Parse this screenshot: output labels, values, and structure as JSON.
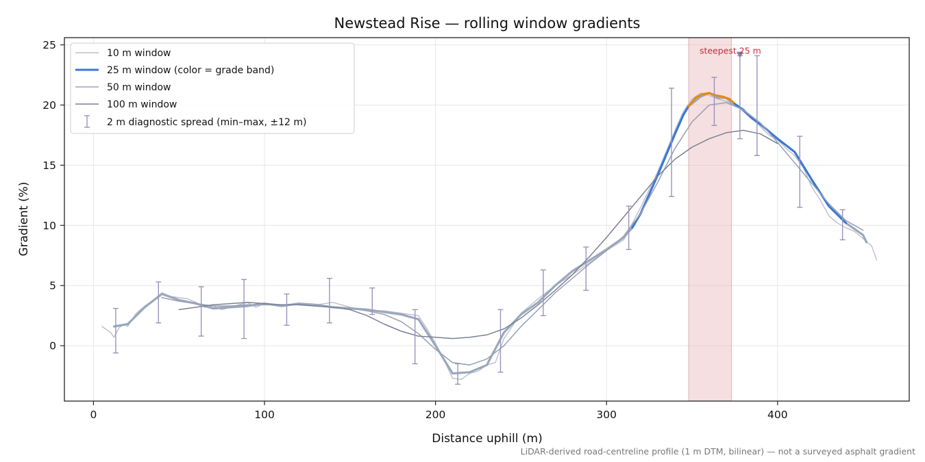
{
  "chart_data": {
    "type": "line",
    "title": "Newstead Rise — rolling window gradients",
    "xlabel": "Distance uphill (m)",
    "ylabel": "Gradient (%)",
    "xlim": [
      -17,
      477
    ],
    "ylim": [
      -4.6,
      25.6
    ],
    "xticks": [
      0,
      100,
      200,
      300,
      400
    ],
    "yticks": [
      0,
      5,
      10,
      15,
      20,
      25
    ],
    "grid": true,
    "legend_position": "top-left",
    "footnote": "LiDAR-derived road-centreline profile (1 m DTM, bilinear) — not a surveyed asphalt gradient",
    "annotation": {
      "label": "steepest 25 m",
      "x": 378,
      "y": 24.2
    },
    "highlight_band": {
      "x_start": 348,
      "x_end": 373
    },
    "colors": {
      "w10": "#b9bfcc",
      "w25_base": "#9aa8bd",
      "w25_blue": "#3a78d6",
      "w25_orange": "#e88a00",
      "w50": "#9ba3b4",
      "w100": "#7b8193",
      "errorbar": "#9a92bd",
      "band": "#e9b9bd",
      "marker": "#8a7cb0",
      "annotation": "#c0303a"
    },
    "legend": [
      "10 m window",
      "25 m window (color = grade band)",
      "50 m window",
      "100 m window",
      "2 m diagnostic spread (min–max, ±12 m)"
    ],
    "series": [
      {
        "name": "10 m window",
        "x": [
          5,
          8,
          10,
          12,
          15,
          18,
          20,
          25,
          30,
          35,
          40,
          45,
          50,
          55,
          60,
          65,
          70,
          75,
          80,
          85,
          90,
          95,
          100,
          110,
          120,
          130,
          140,
          150,
          160,
          170,
          180,
          190,
          195,
          200,
          205,
          210,
          215,
          220,
          225,
          230,
          235,
          240,
          250,
          260,
          270,
          280,
          290,
          300,
          310,
          320,
          330,
          340,
          345,
          350,
          355,
          360,
          365,
          370,
          375,
          380,
          385,
          390,
          395,
          400,
          405,
          410,
          415,
          420,
          425,
          430,
          435,
          440,
          445,
          450,
          455,
          458
        ],
        "y": [
          1.6,
          1.3,
          1.1,
          0.7,
          1.5,
          1.8,
          1.6,
          2.7,
          3.3,
          3.8,
          4.4,
          4.1,
          4.0,
          3.9,
          3.6,
          3.2,
          3.3,
          3.0,
          3.2,
          3.4,
          3.6,
          3.2,
          3.5,
          3.3,
          3.5,
          3.4,
          3.6,
          3.2,
          2.9,
          2.9,
          2.7,
          2.5,
          1.4,
          0.2,
          -1.2,
          -2.7,
          -2.8,
          -2.3,
          -2.1,
          -1.6,
          -1.4,
          0.6,
          2.7,
          3.9,
          5.0,
          5.9,
          6.9,
          7.9,
          8.8,
          11.5,
          14.5,
          17.9,
          19.5,
          20.5,
          21.0,
          20.8,
          20.5,
          20.3,
          20.0,
          19.7,
          18.9,
          18.2,
          17.5,
          17.1,
          16.4,
          15.8,
          14.8,
          13.2,
          12.1,
          10.8,
          10.2,
          9.8,
          9.5,
          8.9,
          8.3,
          7.1
        ]
      },
      {
        "name": "25 m window",
        "x": [
          12,
          20,
          30,
          40,
          50,
          60,
          70,
          80,
          90,
          100,
          110,
          120,
          130,
          140,
          150,
          160,
          170,
          180,
          190,
          200,
          210,
          220,
          230,
          240,
          250,
          260,
          270,
          280,
          290,
          300,
          310,
          315,
          320,
          330,
          340,
          345,
          348,
          355,
          360,
          365,
          370,
          373,
          378,
          385,
          390,
          400,
          410,
          420,
          430,
          440,
          450,
          452
        ],
        "y": [
          1.6,
          1.8,
          3.2,
          4.3,
          3.8,
          3.5,
          3.1,
          3.2,
          3.3,
          3.5,
          3.3,
          3.5,
          3.4,
          3.2,
          3.1,
          3.0,
          2.8,
          2.6,
          2.2,
          0.0,
          -2.3,
          -2.2,
          -1.6,
          1.1,
          2.6,
          3.6,
          5.0,
          6.2,
          7.1,
          8.0,
          9.0,
          9.8,
          11.0,
          14.2,
          17.6,
          19.2,
          19.9,
          20.7,
          21.0,
          20.6,
          20.6,
          20.2,
          19.8,
          18.9,
          18.4,
          17.2,
          16.1,
          13.8,
          11.6,
          10.2,
          9.2,
          8.6
        ]
      },
      {
        "name": "25 m grade band (blue)",
        "x": [
          315,
          320,
          330,
          340,
          345,
          348
        ],
        "y": [
          9.8,
          11.0,
          14.2,
          17.6,
          19.2,
          19.9
        ]
      },
      {
        "name": "25 m grade band (orange)",
        "x": [
          348,
          352,
          356,
          360,
          364,
          368,
          372,
          375
        ],
        "y": [
          19.9,
          20.6,
          20.9,
          21.0,
          20.8,
          20.7,
          20.5,
          20.1
        ]
      },
      {
        "name": "25 m grade band (blue 2)",
        "x": [
          375,
          380,
          385,
          390,
          400,
          410,
          420,
          430,
          440
        ],
        "y": [
          20.1,
          19.6,
          18.9,
          18.4,
          17.2,
          16.1,
          13.8,
          11.6,
          10.2
        ]
      },
      {
        "name": "50 m window",
        "x": [
          40,
          50,
          60,
          70,
          80,
          90,
          100,
          110,
          120,
          130,
          140,
          150,
          160,
          170,
          180,
          190,
          200,
          210,
          220,
          230,
          240,
          250,
          260,
          270,
          280,
          290,
          300,
          310,
          320,
          330,
          340,
          350,
          360,
          370,
          380,
          390,
          400,
          410,
          420,
          430,
          440,
          445,
          450
        ],
        "y": [
          4.0,
          3.7,
          3.5,
          3.3,
          3.3,
          3.4,
          3.4,
          3.4,
          3.4,
          3.3,
          3.2,
          3.1,
          2.9,
          2.6,
          2.0,
          1.0,
          -0.3,
          -1.4,
          -1.6,
          -1.1,
          0.0,
          1.6,
          3.0,
          4.4,
          5.6,
          6.8,
          7.9,
          9.1,
          11.0,
          13.6,
          16.4,
          18.6,
          20.0,
          20.2,
          19.6,
          18.5,
          16.9,
          15.2,
          13.5,
          11.8,
          10.4,
          10.0,
          9.6
        ]
      },
      {
        "name": "100 m window",
        "x": [
          50,
          60,
          70,
          80,
          90,
          100,
          110,
          120,
          130,
          140,
          150,
          160,
          170,
          180,
          190,
          200,
          210,
          220,
          230,
          240,
          250,
          260,
          270,
          280,
          290,
          300,
          310,
          320,
          330,
          340,
          350,
          360,
          370,
          380,
          390,
          400
        ],
        "y": [
          3.0,
          3.2,
          3.4,
          3.5,
          3.6,
          3.5,
          3.4,
          3.4,
          3.3,
          3.2,
          3.0,
          2.5,
          1.8,
          1.2,
          0.8,
          0.7,
          0.6,
          0.7,
          0.9,
          1.4,
          2.3,
          3.4,
          4.6,
          5.9,
          7.4,
          9.0,
          10.7,
          12.4,
          14.1,
          15.5,
          16.5,
          17.2,
          17.7,
          17.9,
          17.6,
          16.8
        ]
      }
    ],
    "error_bars": [
      {
        "x": 13,
        "low": -0.6,
        "high": 3.1
      },
      {
        "x": 38,
        "low": 1.9,
        "high": 5.3
      },
      {
        "x": 63,
        "low": 0.8,
        "high": 4.9
      },
      {
        "x": 88,
        "low": 0.6,
        "high": 5.5
      },
      {
        "x": 113,
        "low": 1.7,
        "high": 4.3
      },
      {
        "x": 138,
        "low": 1.9,
        "high": 5.6
      },
      {
        "x": 163,
        "low": 2.6,
        "high": 4.8
      },
      {
        "x": 188,
        "low": -1.5,
        "high": 3.0
      },
      {
        "x": 213,
        "low": -3.2,
        "high": -1.5
      },
      {
        "x": 238,
        "low": -2.2,
        "high": 3.0
      },
      {
        "x": 263,
        "low": 2.5,
        "high": 6.3
      },
      {
        "x": 288,
        "low": 4.6,
        "high": 8.2
      },
      {
        "x": 313,
        "low": 8.0,
        "high": 11.6
      },
      {
        "x": 338,
        "low": 12.4,
        "high": 21.4
      },
      {
        "x": 363,
        "low": 18.3,
        "high": 22.3
      },
      {
        "x": 378,
        "low": 17.2,
        "high": 24.1
      },
      {
        "x": 388,
        "low": 15.8,
        "high": 24.1
      },
      {
        "x": 413,
        "low": 11.5,
        "high": 17.4
      },
      {
        "x": 438,
        "low": 8.8,
        "high": 11.3
      }
    ]
  }
}
